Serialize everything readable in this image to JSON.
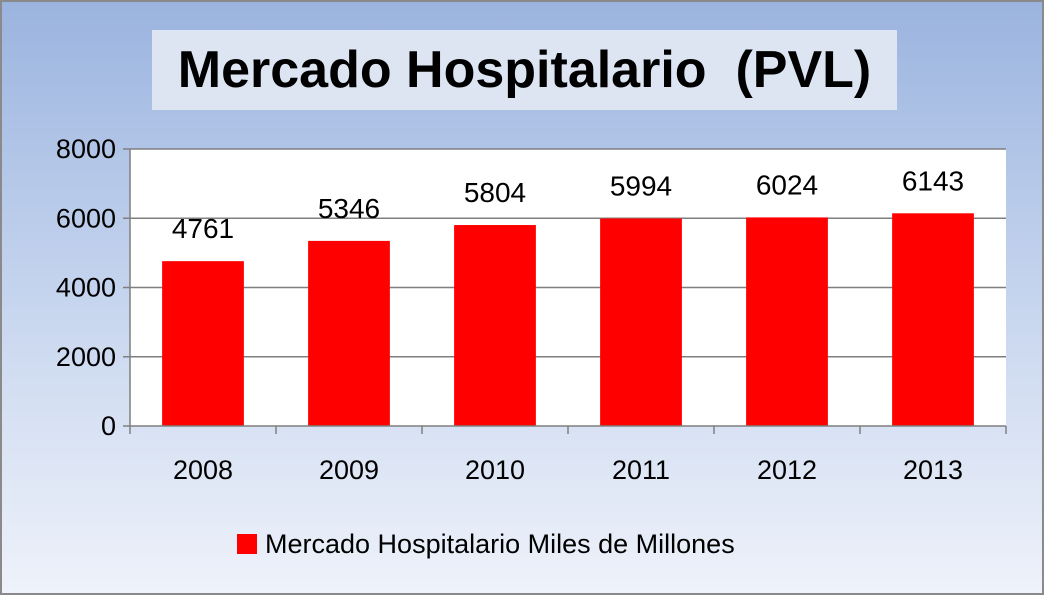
{
  "chart_data": {
    "type": "bar",
    "title": "Mercado Hospitalario  (PVL)",
    "categories": [
      "2008",
      "2009",
      "2010",
      "2011",
      "2012",
      "2013"
    ],
    "series": [
      {
        "name": "Mercado Hospitalario Miles de Millones",
        "values": [
          4761,
          5346,
          5804,
          5994,
          6024,
          6143
        ],
        "color": "#ff0000"
      }
    ],
    "data_labels": [
      "4761",
      "5346",
      "5804",
      "5994",
      "6024",
      "6143"
    ],
    "y_ticks": [
      "0",
      "2000",
      "4000",
      "6000",
      "8000"
    ],
    "ylim": [
      0,
      8000
    ],
    "xlabel": "",
    "ylabel": "",
    "grid": true,
    "legend_position": "bottom",
    "colors": {
      "bar": "#ff0000",
      "plot_background": "#ffffff",
      "gridline": "#7f7f7f"
    }
  }
}
